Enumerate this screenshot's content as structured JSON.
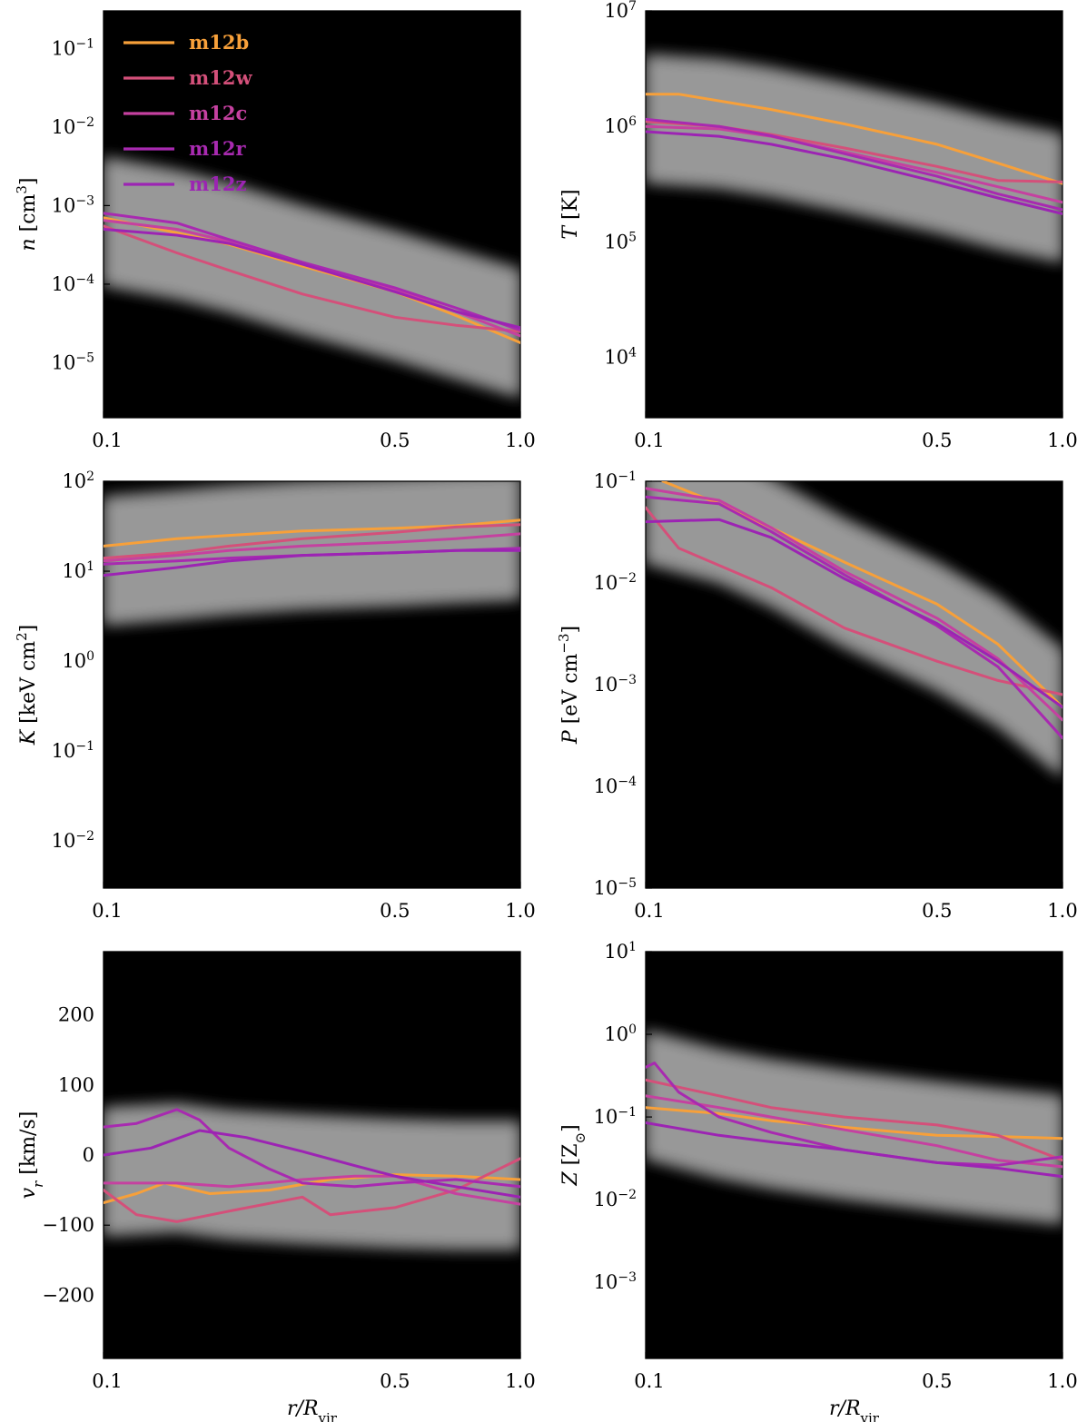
{
  "colors": {
    "m12b": "#f7a03a",
    "m12w": "#d4507a",
    "m12c": "#c541a0",
    "m12r": "#a82ab0",
    "m12z": "#9c24b3",
    "background_dense": "#000000",
    "background_haze": "#d9d9d9"
  },
  "legend": {
    "placement": "upper-left of first panel",
    "entries": [
      {
        "name": "m12b",
        "color": "#f7a03a"
      },
      {
        "name": "m12w",
        "color": "#d4507a"
      },
      {
        "name": "m12c",
        "color": "#c541a0"
      },
      {
        "name": "m12r",
        "color": "#a82ab0"
      },
      {
        "name": "m12z",
        "color": "#9c24b3"
      }
    ]
  },
  "chart_data": [
    {
      "type": "line",
      "xscale": "log",
      "yscale": "log",
      "xlim": [
        0.1,
        1.0
      ],
      "ylim": [
        2e-06,
        0.3
      ],
      "xticks": [
        {
          "v": 0.1,
          "label": "0.1"
        },
        {
          "v": 0.5,
          "label": "0.5"
        },
        {
          "v": 1.0,
          "label": "1.0"
        }
      ],
      "yticks": [
        {
          "v": 1e-05,
          "m": "10",
          "e": "−5"
        },
        {
          "v": 0.0001,
          "m": "10",
          "e": "−4"
        },
        {
          "v": 0.001,
          "m": "10",
          "e": "−3"
        },
        {
          "v": 0.01,
          "m": "10",
          "e": "−2"
        },
        {
          "v": 0.1,
          "m": "10",
          "e": "−1"
        }
      ],
      "ylabel": {
        "sym": "n",
        "unit": "[cm",
        "sup": "3",
        "close": "]"
      },
      "xlabel": {
        "sym": "",
        "sub": ""
      },
      "grid": false,
      "series": [
        {
          "name": "m12b",
          "x": [
            0.1,
            0.15,
            0.2,
            0.3,
            0.5,
            0.7,
            1.0
          ],
          "y": [
            0.0007,
            0.00045,
            0.00032,
            0.00017,
            8e-05,
            4e-05,
            1.8e-05
          ]
        },
        {
          "name": "m12w",
          "x": [
            0.1,
            0.15,
            0.2,
            0.3,
            0.5,
            0.7,
            1.0
          ],
          "y": [
            0.00055,
            0.00025,
            0.00015,
            7.5e-05,
            3.8e-05,
            3e-05,
            2.5e-05
          ]
        },
        {
          "name": "m12c",
          "x": [
            0.1,
            0.15,
            0.2,
            0.3,
            0.5,
            0.7,
            1.0
          ],
          "y": [
            0.00065,
            0.0005,
            0.00035,
            0.00018,
            8.5e-05,
            4.5e-05,
            2.2e-05
          ]
        },
        {
          "name": "m12r",
          "x": [
            0.1,
            0.15,
            0.2,
            0.3,
            0.5,
            0.7,
            1.0
          ],
          "y": [
            0.0008,
            0.0006,
            0.00037,
            0.00019,
            9e-05,
            5e-05,
            2.6e-05
          ]
        },
        {
          "name": "m12z",
          "x": [
            0.1,
            0.15,
            0.2,
            0.3,
            0.5,
            0.7,
            1.0
          ],
          "y": [
            0.0005,
            0.00042,
            0.00033,
            0.00018,
            8e-05,
            4.5e-05,
            2.8e-05
          ]
        }
      ]
    },
    {
      "type": "line",
      "xscale": "log",
      "yscale": "log",
      "xlim": [
        0.1,
        1.0
      ],
      "ylim": [
        3000,
        10000000
      ],
      "xticks": [
        {
          "v": 0.1,
          "label": "0.1"
        },
        {
          "v": 0.5,
          "label": "0.5"
        },
        {
          "v": 1.0,
          "label": "1.0"
        }
      ],
      "yticks": [
        {
          "v": 10000,
          "m": "10",
          "e": "4"
        },
        {
          "v": 100000,
          "m": "10",
          "e": "5"
        },
        {
          "v": 1000000,
          "m": "10",
          "e": "6"
        },
        {
          "v": 10000000,
          "m": "10",
          "e": "7"
        }
      ],
      "ylabel": {
        "sym": "T",
        "unit": "[K]",
        "sup": "",
        "close": ""
      },
      "xlabel": {
        "sym": "",
        "sub": ""
      },
      "grid": false,
      "series": [
        {
          "name": "m12b",
          "x": [
            0.1,
            0.12,
            0.2,
            0.3,
            0.5,
            0.7,
            1.0
          ],
          "y": [
            1900000,
            1900000,
            1400000,
            1050000,
            700000,
            480000,
            320000
          ]
        },
        {
          "name": "m12w",
          "x": [
            0.1,
            0.15,
            0.2,
            0.3,
            0.5,
            0.7,
            1.0
          ],
          "y": [
            1100000,
            1000000,
            850000,
            650000,
            450000,
            340000,
            330000
          ]
        },
        {
          "name": "m12c",
          "x": [
            0.1,
            0.15,
            0.2,
            0.3,
            0.5,
            0.7,
            1.0
          ],
          "y": [
            1000000,
            950000,
            820000,
            600000,
            400000,
            300000,
            220000
          ]
        },
        {
          "name": "m12r",
          "x": [
            0.1,
            0.15,
            0.2,
            0.3,
            0.5,
            0.7,
            1.0
          ],
          "y": [
            1150000,
            1000000,
            830000,
            580000,
            370000,
            260000,
            190000
          ]
        },
        {
          "name": "m12z",
          "x": [
            0.1,
            0.15,
            0.2,
            0.3,
            0.5,
            0.7,
            1.0
          ],
          "y": [
            900000,
            820000,
            700000,
            520000,
            330000,
            240000,
            175000
          ]
        }
      ]
    },
    {
      "type": "line",
      "xscale": "log",
      "yscale": "log",
      "xlim": [
        0.1,
        1.0
      ],
      "ylim": [
        0.003,
        100
      ],
      "xticks": [
        {
          "v": 0.1,
          "label": "0.1"
        },
        {
          "v": 0.5,
          "label": "0.5"
        },
        {
          "v": 1.0,
          "label": "1.0"
        }
      ],
      "yticks": [
        {
          "v": 0.01,
          "m": "10",
          "e": "−2"
        },
        {
          "v": 0.1,
          "m": "10",
          "e": "−1"
        },
        {
          "v": 1,
          "m": "10",
          "e": "0"
        },
        {
          "v": 10,
          "m": "10",
          "e": "1"
        },
        {
          "v": 100,
          "m": "10",
          "e": "2"
        }
      ],
      "ylabel": {
        "sym": "K",
        "unit": "[keV cm",
        "sup": "2",
        "close": "]"
      },
      "xlabel": {
        "sym": "",
        "sub": ""
      },
      "grid": false,
      "series": [
        {
          "name": "m12b",
          "x": [
            0.1,
            0.15,
            0.2,
            0.3,
            0.5,
            0.7,
            1.0
          ],
          "y": [
            19,
            23,
            25,
            28,
            30,
            32,
            37
          ]
        },
        {
          "name": "m12w",
          "x": [
            0.1,
            0.15,
            0.2,
            0.3,
            0.5,
            0.7,
            1.0
          ],
          "y": [
            14,
            16,
            19,
            23,
            27,
            31,
            33
          ]
        },
        {
          "name": "m12c",
          "x": [
            0.1,
            0.15,
            0.2,
            0.3,
            0.5,
            0.7,
            1.0
          ],
          "y": [
            13,
            15,
            17,
            19,
            21,
            23,
            26
          ]
        },
        {
          "name": "m12r",
          "x": [
            0.1,
            0.15,
            0.2,
            0.3,
            0.5,
            0.7,
            1.0
          ],
          "y": [
            12,
            13,
            14,
            15,
            16,
            17,
            18
          ]
        },
        {
          "name": "m12z",
          "x": [
            0.1,
            0.15,
            0.2,
            0.3,
            0.5,
            0.7,
            1.0
          ],
          "y": [
            9,
            11,
            13,
            15,
            16,
            17,
            17
          ]
        }
      ]
    },
    {
      "type": "line",
      "xscale": "log",
      "yscale": "log",
      "xlim": [
        0.1,
        1.0
      ],
      "ylim": [
        1e-05,
        0.1
      ],
      "xticks": [
        {
          "v": 0.1,
          "label": "0.1"
        },
        {
          "v": 0.5,
          "label": "0.5"
        },
        {
          "v": 1.0,
          "label": "1.0"
        }
      ],
      "yticks": [
        {
          "v": 1e-05,
          "m": "10",
          "e": "−5"
        },
        {
          "v": 0.0001,
          "m": "10",
          "e": "−4"
        },
        {
          "v": 0.001,
          "m": "10",
          "e": "−3"
        },
        {
          "v": 0.01,
          "m": "10",
          "e": "−2"
        },
        {
          "v": 0.1,
          "m": "10",
          "e": "−1"
        }
      ],
      "ylabel": {
        "sym": "P",
        "unit": "[eV cm",
        "sup": "−3",
        "close": "]"
      },
      "xlabel": {
        "sym": "",
        "sub": ""
      },
      "grid": false,
      "series": [
        {
          "name": "m12b",
          "x": [
            0.11,
            0.15,
            0.2,
            0.3,
            0.5,
            0.7,
            1.0
          ],
          "y": [
            0.1,
            0.06,
            0.035,
            0.016,
            0.0062,
            0.0025,
            0.0006
          ]
        },
        {
          "name": "m12w",
          "x": [
            0.1,
            0.12,
            0.2,
            0.3,
            0.5,
            0.7,
            1.0
          ],
          "y": [
            0.055,
            0.022,
            0.009,
            0.0036,
            0.0017,
            0.0011,
            0.0008
          ]
        },
        {
          "name": "m12c",
          "x": [
            0.1,
            0.15,
            0.2,
            0.3,
            0.5,
            0.7,
            1.0
          ],
          "y": [
            0.085,
            0.065,
            0.035,
            0.013,
            0.0045,
            0.0018,
            0.00045
          ]
        },
        {
          "name": "m12r",
          "x": [
            0.1,
            0.15,
            0.2,
            0.3,
            0.5,
            0.7,
            1.0
          ],
          "y": [
            0.07,
            0.06,
            0.032,
            0.012,
            0.0038,
            0.0015,
            0.0003
          ]
        },
        {
          "name": "m12z",
          "x": [
            0.1,
            0.15,
            0.2,
            0.3,
            0.5,
            0.7,
            1.0
          ],
          "y": [
            0.04,
            0.042,
            0.028,
            0.011,
            0.004,
            0.0017,
            0.0006
          ]
        }
      ]
    },
    {
      "type": "line",
      "xscale": "log",
      "yscale": "linear",
      "xlim": [
        0.1,
        1.0
      ],
      "ylim": [
        -290,
        290
      ],
      "xticks": [
        {
          "v": 0.1,
          "label": "0.1"
        },
        {
          "v": 0.5,
          "label": "0.5"
        },
        {
          "v": 1.0,
          "label": "1.0"
        }
      ],
      "yticks": [
        {
          "v": -200,
          "m": "−200",
          "e": ""
        },
        {
          "v": -100,
          "m": "−100",
          "e": ""
        },
        {
          "v": 0,
          "m": "0",
          "e": ""
        },
        {
          "v": 100,
          "m": "100",
          "e": ""
        },
        {
          "v": 200,
          "m": "200",
          "e": ""
        }
      ],
      "ylabel": {
        "sym": "v",
        "sub": "r",
        "unit": "[km/s]",
        "sup": "",
        "close": ""
      },
      "xlabel": {
        "sym": "r/R",
        "sub": "vir"
      },
      "grid": false,
      "series": [
        {
          "name": "m12b",
          "x": [
            0.1,
            0.12,
            0.14,
            0.18,
            0.25,
            0.35,
            0.5,
            0.7,
            1.0
          ],
          "y": [
            -68,
            -55,
            -40,
            -55,
            -50,
            -35,
            -28,
            -30,
            -35
          ]
        },
        {
          "name": "m12w",
          "x": [
            0.1,
            0.12,
            0.15,
            0.2,
            0.3,
            0.35,
            0.5,
            0.7,
            1.0
          ],
          "y": [
            -50,
            -85,
            -95,
            -80,
            -60,
            -85,
            -75,
            -50,
            -5
          ]
        },
        {
          "name": "m12c",
          "x": [
            0.1,
            0.15,
            0.2,
            0.3,
            0.4,
            0.5,
            0.7,
            1.0
          ],
          "y": [
            -40,
            -40,
            -45,
            -35,
            -30,
            -30,
            -55,
            -70
          ]
        },
        {
          "name": "m12r",
          "x": [
            0.1,
            0.12,
            0.15,
            0.17,
            0.2,
            0.25,
            0.3,
            0.4,
            0.5,
            0.7,
            1.0
          ],
          "y": [
            40,
            45,
            65,
            50,
            10,
            -20,
            -40,
            -45,
            -40,
            -35,
            -45
          ]
        },
        {
          "name": "m12z",
          "x": [
            0.1,
            0.13,
            0.17,
            0.22,
            0.3,
            0.4,
            0.5,
            0.7,
            1.0
          ],
          "y": [
            0,
            10,
            35,
            25,
            5,
            -15,
            -30,
            -45,
            -60
          ]
        }
      ]
    },
    {
      "type": "line",
      "xscale": "log",
      "yscale": "log",
      "xlim": [
        0.1,
        1.0
      ],
      "ylim": [
        0.00012,
        10
      ],
      "xticks": [
        {
          "v": 0.1,
          "label": "0.1"
        },
        {
          "v": 0.5,
          "label": "0.5"
        },
        {
          "v": 1.0,
          "label": "1.0"
        }
      ],
      "yticks": [
        {
          "v": 0.001,
          "m": "10",
          "e": "−3"
        },
        {
          "v": 0.01,
          "m": "10",
          "e": "−2"
        },
        {
          "v": 0.1,
          "m": "10",
          "e": "−1"
        },
        {
          "v": 1,
          "m": "10",
          "e": "0"
        },
        {
          "v": 10,
          "m": "10",
          "e": "1"
        }
      ],
      "ylabel": {
        "sym": "Z",
        "unit": "[Z",
        "sub2": "⊙",
        "sup": "",
        "close": "]"
      },
      "xlabel": {
        "sym": "r/R",
        "sub": "vir"
      },
      "grid": false,
      "series": [
        {
          "name": "m12b",
          "x": [
            0.1,
            0.15,
            0.2,
            0.3,
            0.5,
            0.7,
            1.0
          ],
          "y": [
            0.13,
            0.11,
            0.09,
            0.075,
            0.06,
            0.058,
            0.055
          ]
        },
        {
          "name": "m12w",
          "x": [
            0.1,
            0.15,
            0.2,
            0.3,
            0.5,
            0.7,
            1.0
          ],
          "y": [
            0.28,
            0.18,
            0.13,
            0.1,
            0.08,
            0.06,
            0.03
          ]
        },
        {
          "name": "m12c",
          "x": [
            0.1,
            0.15,
            0.2,
            0.3,
            0.5,
            0.7,
            1.0
          ],
          "y": [
            0.18,
            0.13,
            0.1,
            0.07,
            0.045,
            0.03,
            0.025
          ]
        },
        {
          "name": "m12r",
          "x": [
            0.1,
            0.105,
            0.12,
            0.15,
            0.2,
            0.3,
            0.5,
            0.7,
            1.0
          ],
          "y": [
            0.4,
            0.45,
            0.2,
            0.1,
            0.065,
            0.04,
            0.028,
            0.026,
            0.033
          ]
        },
        {
          "name": "m12z",
          "x": [
            0.1,
            0.15,
            0.2,
            0.3,
            0.5,
            0.7,
            1.0
          ],
          "y": [
            0.085,
            0.06,
            0.05,
            0.04,
            0.028,
            0.024,
            0.019
          ]
        }
      ]
    }
  ]
}
